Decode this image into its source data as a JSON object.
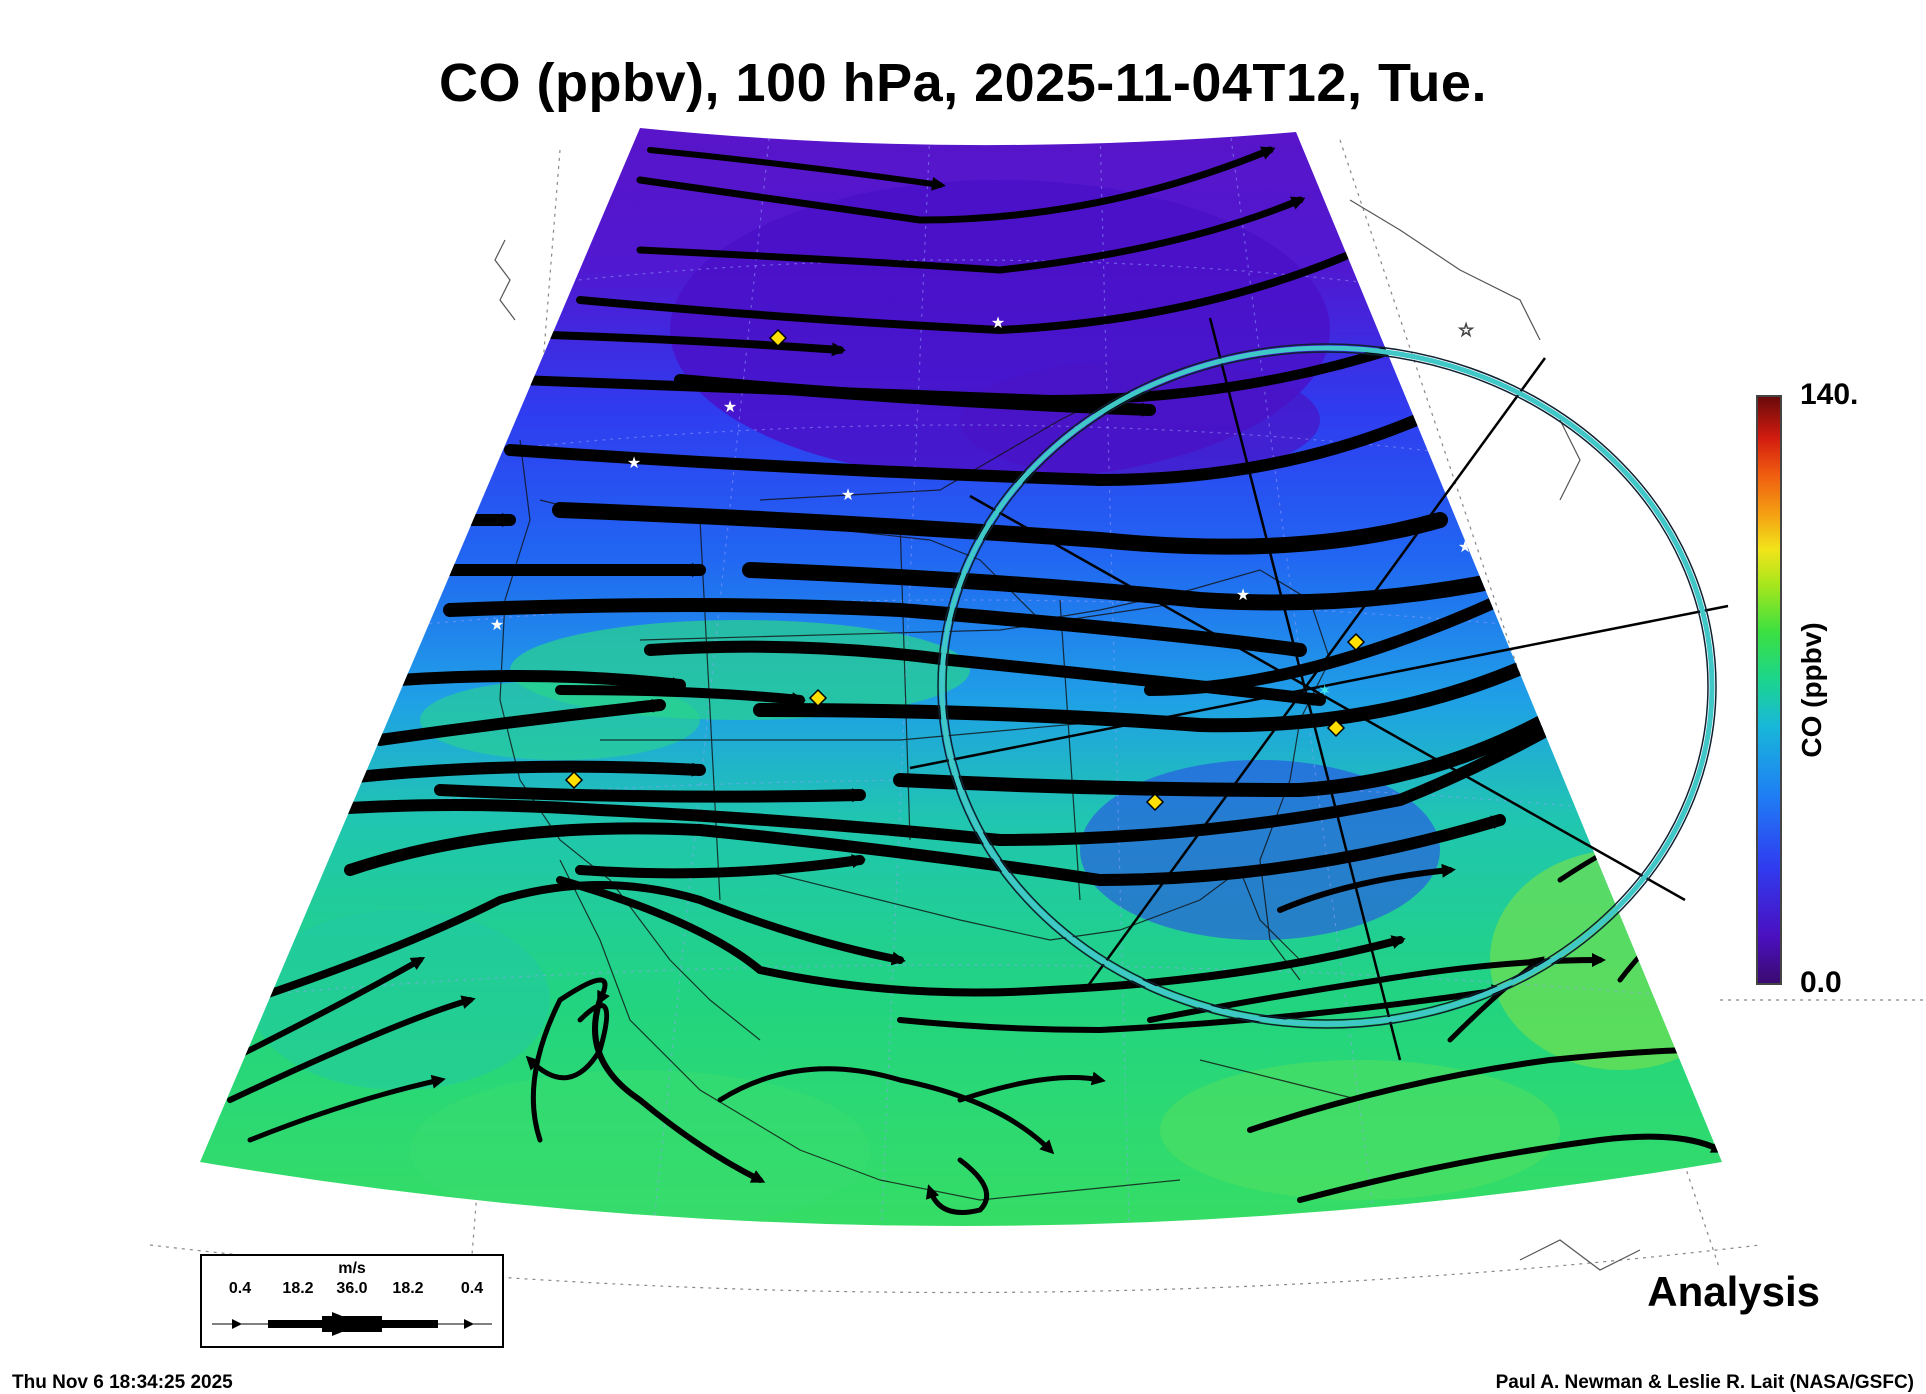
{
  "title": "CO (ppbv), 100 hPa, 2025-11-04T12, Tue.",
  "colorbar": {
    "label": "CO (ppbv)",
    "max_label": "140.",
    "min_label": "0.0",
    "colors": [
      "#3b0a70",
      "#4a10c0",
      "#2f3df0",
      "#1f7ef5",
      "#18b8d8",
      "#1cd68a",
      "#3ce040",
      "#a8e61c",
      "#f2e41a",
      "#f4a012",
      "#ef5a10",
      "#d21c10",
      "#6a0a0a"
    ]
  },
  "wind_legend": {
    "unit": "m/s",
    "values": [
      "0.4",
      "18.2",
      "36.0",
      "18.2",
      "0.4"
    ]
  },
  "product_label": "Analysis",
  "timestamp": "Thu Nov  6 18:34:25 2025",
  "credit": "Paul A. Newman & Leslie R. Lait (NASA/GSFC)",
  "markers": {
    "yellow_diamond_count": 6,
    "white_star_count": 7,
    "highlight_ring_color": "#40c8c8"
  }
}
